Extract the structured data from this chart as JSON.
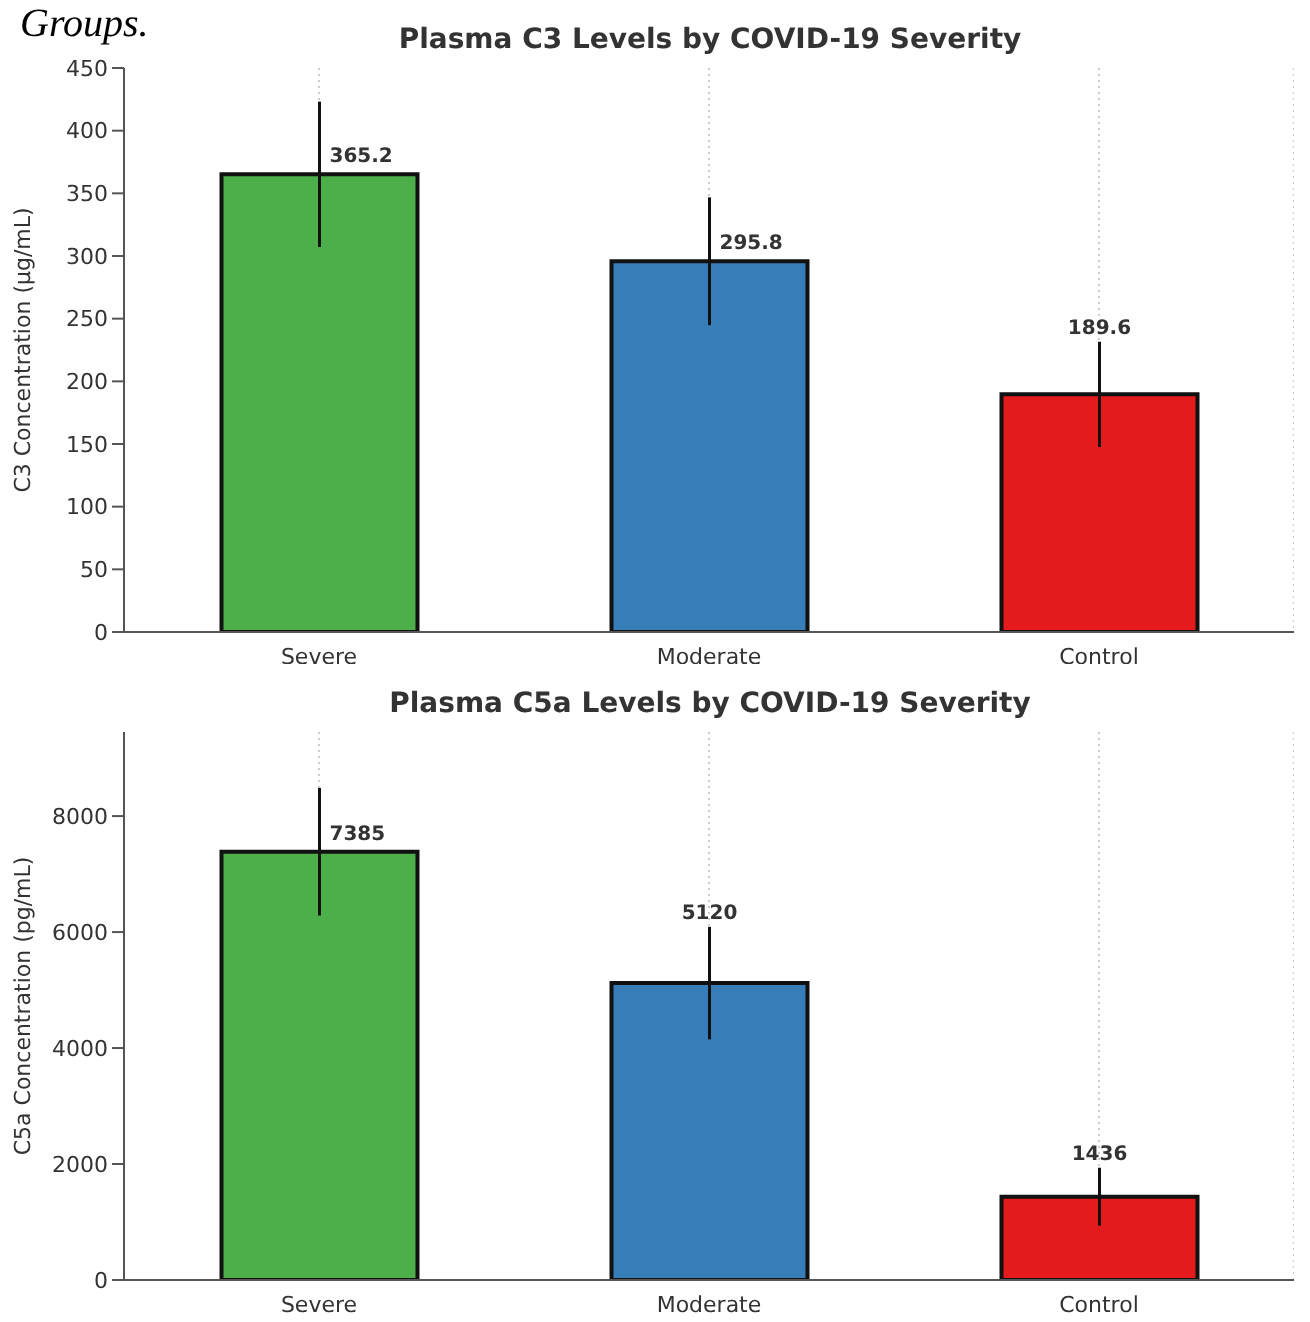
{
  "chart_data": [
    {
      "type": "bar",
      "title": "Plasma C3 Levels by COVID-19 Severity",
      "ylabel": "C3 Concentration (µg/mL)",
      "annotations": [
        "Groups."
      ],
      "categories": [
        "Severe",
        "Moderate",
        "Control"
      ],
      "values": [
        365.2,
        295.8,
        189.6
      ],
      "errors": [
        58,
        51,
        42
      ],
      "colors": [
        "#4daf4a",
        "#377eb8",
        "#e41a1c"
      ],
      "ylim": [
        0,
        450
      ],
      "yticks": [
        0,
        50,
        100,
        150,
        200,
        250,
        300,
        350,
        400,
        450
      ],
      "grid": "x",
      "data_labels": true
    },
    {
      "type": "bar",
      "title": "Plasma C5a Levels by COVID-19 Severity",
      "ylabel": "C5a Concentration (pg/mL)",
      "categories": [
        "Severe",
        "Moderate",
        "Control"
      ],
      "values": [
        7385,
        5120,
        1436
      ],
      "errors": [
        1100,
        970,
        500
      ],
      "colors": [
        "#4daf4a",
        "#377eb8",
        "#e41a1c"
      ],
      "ylim": [
        0,
        9450
      ],
      "yticks": [
        0,
        2000,
        4000,
        6000,
        8000
      ],
      "grid": "x",
      "data_labels": true
    }
  ]
}
